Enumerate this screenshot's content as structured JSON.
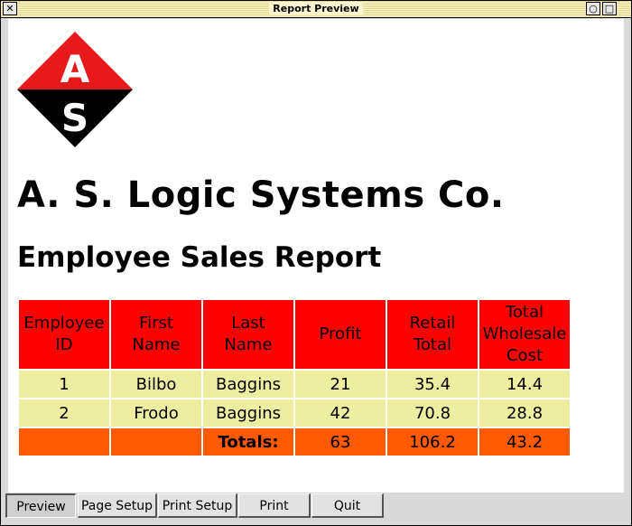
{
  "window": {
    "title": "Report Preview",
    "close_glyph": "✕",
    "min_glyph": "○",
    "max_glyph": "□"
  },
  "logo": {
    "letter_top": "A",
    "letter_bottom": "S",
    "colors": {
      "top": "#e8191c",
      "bottom": "#000000",
      "letters": "#ffffff"
    }
  },
  "report": {
    "company": "A. S. Logic Systems Co.",
    "title": "Employee Sales Report",
    "columns": [
      [
        "Employee",
        "ID"
      ],
      [
        "First",
        "Name"
      ],
      [
        "Last",
        "Name"
      ],
      [
        "Profit"
      ],
      [
        "Retail",
        "Total"
      ],
      [
        "Total",
        "Wholesale",
        "Cost"
      ]
    ],
    "rows": [
      [
        "1",
        "Bilbo",
        "Baggins",
        "21",
        "35.4",
        "14.4"
      ],
      [
        "2",
        "Frodo",
        "Baggins",
        "42",
        "70.8",
        "28.8"
      ]
    ],
    "totals": [
      "",
      "",
      "Totals:",
      "63",
      "106.2",
      "43.2"
    ],
    "colors": {
      "header": "#ff0000",
      "row": "#eeeea0",
      "totals": "#ff5a00"
    }
  },
  "buttons": [
    "Preview",
    "Page Setup",
    "Print Setup",
    "Print",
    "Quit"
  ]
}
